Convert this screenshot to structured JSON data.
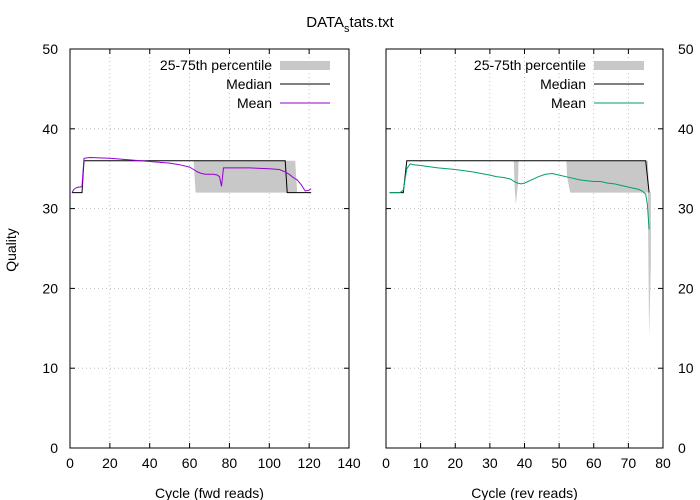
{
  "title": {
    "main": "DATA",
    "sub": "s",
    "rest": "tats.txt"
  },
  "ylabel": "Quality",
  "chart_data": [
    {
      "type": "line",
      "panel": "left",
      "xlabel": "Cycle (fwd reads)",
      "ylabel": "Quality",
      "xlim": [
        0,
        140
      ],
      "ylim": [
        0,
        50
      ],
      "xticks": [
        "0",
        "20",
        "40",
        "60",
        "80",
        "100",
        "120",
        "140"
      ],
      "yticks": [
        "0",
        "10",
        "20",
        "30",
        "40",
        "50"
      ],
      "grid": true,
      "legend_position": "top-right",
      "legend": [
        "25-75th percentile",
        "Median",
        "Mean"
      ],
      "mean_color": "#9400d3",
      "percentile_band": {
        "name": "25-75th percentile",
        "x": [
          1,
          6,
          7,
          62,
          63,
          108,
          109,
          113,
          114,
          121
        ],
        "lo": [
          32,
          32,
          36,
          36,
          32,
          32,
          32,
          32,
          32,
          32
        ],
        "hi": [
          32,
          32,
          36,
          36,
          36,
          36,
          36,
          36,
          32,
          32
        ]
      },
      "series": [
        {
          "name": "Median",
          "x": [
            1,
            6,
            7,
            108,
            109,
            121
          ],
          "y": [
            32,
            32,
            36,
            36,
            32,
            32
          ]
        },
        {
          "name": "Mean",
          "x": [
            1,
            2,
            3,
            4,
            5,
            6,
            7,
            10,
            20,
            30,
            40,
            50,
            55,
            60,
            62,
            64,
            66,
            68,
            70,
            72,
            74,
            75,
            76,
            77,
            80,
            90,
            100,
            105,
            108,
            110,
            112,
            114,
            116,
            118,
            120,
            121
          ],
          "y": [
            32.0,
            32.4,
            32.6,
            32.7,
            32.7,
            32.8,
            36.3,
            36.4,
            36.3,
            36.1,
            35.9,
            35.7,
            35.5,
            35.2,
            34.9,
            34.6,
            34.4,
            34.3,
            34.3,
            34.3,
            34.2,
            34.0,
            32.8,
            35.1,
            35.1,
            35.1,
            35.0,
            34.9,
            34.6,
            34.3,
            33.9,
            33.6,
            33.0,
            32.2,
            32.3,
            32.5
          ]
        }
      ]
    },
    {
      "type": "line",
      "panel": "right",
      "xlabel": "Cycle (rev reads)",
      "ylabel": "Quality",
      "xlim": [
        0,
        80
      ],
      "ylim": [
        0,
        50
      ],
      "xticks": [
        "0",
        "10",
        "20",
        "30",
        "40",
        "50",
        "60",
        "70",
        "80"
      ],
      "yticks": [
        "0",
        "10",
        "20",
        "30",
        "40",
        "50"
      ],
      "grid": true,
      "legend_position": "top-right",
      "legend": [
        "25-75th percentile",
        "Median",
        "Mean"
      ],
      "mean_color": "#009e73",
      "percentile_band": {
        "name": "25-75th percentile",
        "x": [
          1,
          5,
          6,
          36.9,
          37.1,
          37.5,
          38.1,
          38.3,
          52.1,
          52.3,
          53.2,
          75,
          75.6,
          76,
          76.5
        ],
        "lo": [
          32,
          32,
          36,
          36,
          33,
          30.5,
          33,
          36,
          36,
          34,
          32,
          32,
          32,
          14,
          23
        ],
        "hi": [
          32,
          32,
          36,
          36,
          36,
          36,
          36,
          36,
          36,
          36,
          36,
          36,
          36,
          32,
          32
        ]
      },
      "series": [
        {
          "name": "Median",
          "x": [
            1,
            5,
            6,
            75,
            76
          ],
          "y": [
            32,
            32,
            36,
            36,
            32
          ]
        },
        {
          "name": "Mean",
          "x": [
            1,
            2,
            3,
            4,
            5,
            6,
            7,
            8,
            10,
            15,
            20,
            25,
            30,
            32,
            34,
            36,
            37,
            38,
            39,
            40,
            42,
            44,
            46,
            48,
            50,
            52,
            54,
            56,
            58,
            60,
            62,
            64,
            66,
            68,
            70,
            72,
            73,
            74,
            75,
            75.5,
            76
          ],
          "y": [
            32.0,
            32.0,
            32.0,
            32.0,
            32.3,
            35.0,
            35.6,
            35.5,
            35.4,
            35.1,
            34.9,
            34.6,
            34.2,
            34.0,
            33.9,
            33.7,
            33.4,
            33.2,
            33.1,
            33.2,
            33.6,
            34.0,
            34.3,
            34.4,
            34.2,
            34.0,
            33.8,
            33.6,
            33.5,
            33.4,
            33.4,
            33.2,
            33.1,
            32.9,
            32.7,
            32.5,
            32.4,
            32.2,
            31.8,
            30.5,
            27.4
          ]
        }
      ]
    }
  ]
}
